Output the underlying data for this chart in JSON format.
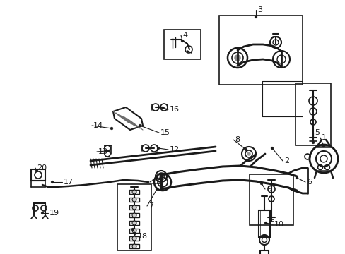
{
  "bg_color": "#ffffff",
  "line_color": "#1a1a1a",
  "gray": "#888888",
  "fig_width": 4.89,
  "fig_height": 3.6,
  "dpi": 100
}
